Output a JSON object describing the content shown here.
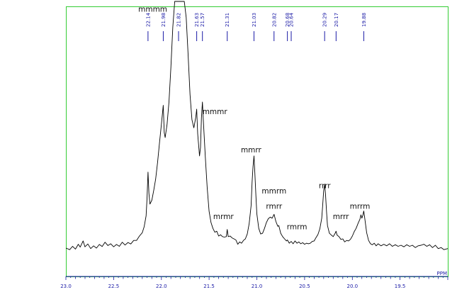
{
  "chart_data": {
    "type": "line",
    "x_unit": "PPM",
    "x_reversed": true,
    "xlim": [
      23.0,
      19.0
    ],
    "ylim": [
      0,
      100
    ],
    "x_ticks": [
      {
        "value": 23.0,
        "label": "23.0"
      },
      {
        "value": 22.5,
        "label": "22.5"
      },
      {
        "value": 22.0,
        "label": "22.0"
      },
      {
        "value": 21.5,
        "label": "21.5"
      },
      {
        "value": 21.0,
        "label": "21.0"
      },
      {
        "value": 20.5,
        "label": "20.5"
      },
      {
        "value": 20.0,
        "label": "20.0"
      },
      {
        "value": 19.5,
        "label": "19.5"
      }
    ],
    "peak_labels": [
      {
        "value": 22.14,
        "label": "22.14"
      },
      {
        "value": 21.98,
        "label": "21.98"
      },
      {
        "value": 21.82,
        "label": "21.82"
      },
      {
        "value": 21.63,
        "label": "21.63"
      },
      {
        "value": 21.57,
        "label": "21.57"
      },
      {
        "value": 21.31,
        "label": "21.31"
      },
      {
        "value": 21.03,
        "label": "21.03"
      },
      {
        "value": 20.82,
        "label": "20.82"
      },
      {
        "value": 20.68,
        "label": "20.68"
      },
      {
        "value": 20.64,
        "label": "20.64"
      },
      {
        "value": 20.29,
        "label": "20.29"
      },
      {
        "value": 20.17,
        "label": "20.17"
      },
      {
        "value": 19.88,
        "label": "19.88"
      }
    ],
    "annotations": [
      {
        "text": "mmmm",
        "x": 22.09,
        "y": 96
      },
      {
        "text": "mmmr",
        "x": 21.44,
        "y": 56
      },
      {
        "text": "mmrr",
        "x": 21.06,
        "y": 41
      },
      {
        "text": "mmrm",
        "x": 20.82,
        "y": 25
      },
      {
        "text": "rmrr",
        "x": 20.82,
        "y": 19
      },
      {
        "text": "mrmr",
        "x": 21.35,
        "y": 15
      },
      {
        "text": "rmrm",
        "x": 20.58,
        "y": 11
      },
      {
        "text": "rrrr",
        "x": 20.29,
        "y": 27
      },
      {
        "text": "mrrr",
        "x": 20.12,
        "y": 15
      },
      {
        "text": "mrrm",
        "x": 19.92,
        "y": 19
      }
    ],
    "series": [
      {
        "points": [
          [
            23.0,
            3.6
          ],
          [
            22.96,
            3.0
          ],
          [
            22.93,
            4.3
          ],
          [
            22.9,
            3.2
          ],
          [
            22.87,
            5.1
          ],
          [
            22.85,
            4.0
          ],
          [
            22.82,
            6.4
          ],
          [
            22.8,
            4.1
          ],
          [
            22.77,
            5.2
          ],
          [
            22.74,
            3.4
          ],
          [
            22.71,
            4.5
          ],
          [
            22.68,
            3.6
          ],
          [
            22.65,
            5.0
          ],
          [
            22.62,
            4.2
          ],
          [
            22.59,
            5.9
          ],
          [
            22.56,
            4.6
          ],
          [
            22.53,
            5.3
          ],
          [
            22.5,
            4.1
          ],
          [
            22.47,
            5.0
          ],
          [
            22.44,
            4.3
          ],
          [
            22.41,
            5.9
          ],
          [
            22.38,
            4.8
          ],
          [
            22.35,
            5.8
          ],
          [
            22.32,
            5.2
          ],
          [
            22.29,
            6.6
          ],
          [
            22.26,
            6.6
          ],
          [
            22.23,
            8.3
          ],
          [
            22.2,
            9.6
          ],
          [
            22.18,
            12.0
          ],
          [
            22.16,
            16.2
          ],
          [
            22.15,
            22.9
          ],
          [
            22.14,
            33.3
          ],
          [
            22.13,
            25.0
          ],
          [
            22.12,
            20.8
          ],
          [
            22.1,
            22.3
          ],
          [
            22.08,
            26.2
          ],
          [
            22.06,
            30.6
          ],
          [
            22.04,
            37.1
          ],
          [
            22.02,
            44.7
          ],
          [
            22.0,
            52.0
          ],
          [
            21.98,
            59.4
          ],
          [
            21.97,
            48.8
          ],
          [
            21.96,
            46.8
          ],
          [
            21.94,
            52.0
          ],
          [
            21.92,
            60.8
          ],
          [
            21.9,
            74.3
          ],
          [
            21.88,
            90.0
          ],
          [
            21.86,
            100.0
          ],
          [
            21.84,
            100.0
          ],
          [
            21.82,
            100.0
          ],
          [
            21.8,
            100.0
          ],
          [
            21.78,
            100.0
          ],
          [
            21.76,
            100.0
          ],
          [
            21.74,
            93.7
          ],
          [
            21.72,
            79.2
          ],
          [
            21.7,
            63.6
          ],
          [
            21.68,
            53.8
          ],
          [
            21.66,
            50.6
          ],
          [
            21.64,
            54.7
          ],
          [
            21.63,
            57.9
          ],
          [
            21.62,
            48.3
          ],
          [
            21.6,
            39.6
          ],
          [
            21.59,
            42.9
          ],
          [
            21.58,
            54.5
          ],
          [
            21.57,
            60.7
          ],
          [
            21.56,
            53.4
          ],
          [
            21.54,
            39.6
          ],
          [
            21.52,
            27.3
          ],
          [
            21.5,
            18.0
          ],
          [
            21.48,
            13.6
          ],
          [
            21.46,
            11.3
          ],
          [
            21.44,
            9.8
          ],
          [
            21.42,
            10.2
          ],
          [
            21.4,
            8.3
          ],
          [
            21.38,
            8.8
          ],
          [
            21.36,
            8.1
          ],
          [
            21.34,
            7.9
          ],
          [
            21.32,
            8.1
          ],
          [
            21.31,
            10.9
          ],
          [
            21.3,
            8.1
          ],
          [
            21.28,
            8.3
          ],
          [
            21.26,
            7.6
          ],
          [
            21.24,
            7.2
          ],
          [
            21.22,
            6.8
          ],
          [
            21.2,
            5.1
          ],
          [
            21.18,
            6.0
          ],
          [
            21.16,
            5.5
          ],
          [
            21.14,
            6.6
          ],
          [
            21.12,
            7.2
          ],
          [
            21.1,
            9.1
          ],
          [
            21.08,
            13.2
          ],
          [
            21.06,
            20.2
          ],
          [
            21.05,
            29.4
          ],
          [
            21.04,
            35.4
          ],
          [
            21.03,
            39.6
          ],
          [
            21.02,
            32.3
          ],
          [
            21.01,
            24.0
          ],
          [
            21.0,
            17.0
          ],
          [
            20.98,
            11.3
          ],
          [
            20.96,
            9.1
          ],
          [
            20.94,
            9.4
          ],
          [
            20.92,
            11.3
          ],
          [
            20.9,
            13.6
          ],
          [
            20.88,
            15.1
          ],
          [
            20.86,
            15.7
          ],
          [
            20.84,
            15.3
          ],
          [
            20.82,
            16.8
          ],
          [
            20.8,
            14.0
          ],
          [
            20.78,
            12.1
          ],
          [
            20.77,
            12.4
          ],
          [
            20.75,
            9.4
          ],
          [
            20.73,
            8.1
          ],
          [
            20.71,
            7.2
          ],
          [
            20.69,
            6.4
          ],
          [
            20.68,
            6.8
          ],
          [
            20.66,
            5.5
          ],
          [
            20.64,
            6.2
          ],
          [
            20.62,
            5.3
          ],
          [
            20.6,
            6.4
          ],
          [
            20.58,
            5.5
          ],
          [
            20.56,
            6.0
          ],
          [
            20.54,
            5.3
          ],
          [
            20.52,
            5.7
          ],
          [
            20.5,
            5.1
          ],
          [
            20.48,
            5.5
          ],
          [
            20.46,
            5.3
          ],
          [
            20.44,
            5.5
          ],
          [
            20.42,
            6.2
          ],
          [
            20.4,
            6.4
          ],
          [
            20.38,
            7.7
          ],
          [
            20.36,
            8.9
          ],
          [
            20.34,
            11.1
          ],
          [
            20.32,
            15.3
          ],
          [
            20.31,
            20.6
          ],
          [
            20.3,
            25.9
          ],
          [
            20.29,
            28.6
          ],
          [
            20.28,
            24.3
          ],
          [
            20.27,
            17.7
          ],
          [
            20.26,
            12.4
          ],
          [
            20.24,
            9.4
          ],
          [
            20.22,
            8.7
          ],
          [
            20.2,
            8.1
          ],
          [
            20.18,
            9.4
          ],
          [
            20.17,
            10.2
          ],
          [
            20.16,
            8.7
          ],
          [
            20.14,
            8.1
          ],
          [
            20.12,
            7.0
          ],
          [
            20.1,
            7.2
          ],
          [
            20.08,
            6.0
          ],
          [
            20.06,
            6.6
          ],
          [
            20.04,
            6.4
          ],
          [
            20.02,
            7.0
          ],
          [
            20.0,
            8.3
          ],
          [
            19.98,
            10.0
          ],
          [
            19.96,
            11.3
          ],
          [
            19.94,
            13.2
          ],
          [
            19.92,
            14.9
          ],
          [
            19.91,
            16.6
          ],
          [
            19.9,
            15.3
          ],
          [
            19.89,
            16.4
          ],
          [
            19.88,
            18.1
          ],
          [
            19.87,
            15.3
          ],
          [
            19.85,
            9.6
          ],
          [
            19.83,
            6.6
          ],
          [
            19.81,
            5.3
          ],
          [
            19.79,
            4.9
          ],
          [
            19.77,
            5.5
          ],
          [
            19.75,
            4.5
          ],
          [
            19.73,
            5.3
          ],
          [
            19.7,
            4.5
          ],
          [
            19.67,
            5.1
          ],
          [
            19.64,
            4.5
          ],
          [
            19.61,
            5.3
          ],
          [
            19.58,
            4.3
          ],
          [
            19.55,
            4.9
          ],
          [
            19.52,
            4.3
          ],
          [
            19.49,
            4.7
          ],
          [
            19.46,
            4.1
          ],
          [
            19.43,
            4.9
          ],
          [
            19.4,
            4.3
          ],
          [
            19.37,
            4.7
          ],
          [
            19.34,
            3.8
          ],
          [
            19.31,
            4.5
          ],
          [
            19.28,
            4.7
          ],
          [
            19.25,
            5.1
          ],
          [
            19.22,
            4.3
          ],
          [
            19.19,
            4.9
          ],
          [
            19.16,
            3.8
          ],
          [
            19.13,
            4.7
          ],
          [
            19.1,
            3.4
          ],
          [
            19.07,
            3.8
          ],
          [
            19.04,
            3.0
          ],
          [
            19.0,
            3.4
          ]
        ]
      }
    ]
  }
}
